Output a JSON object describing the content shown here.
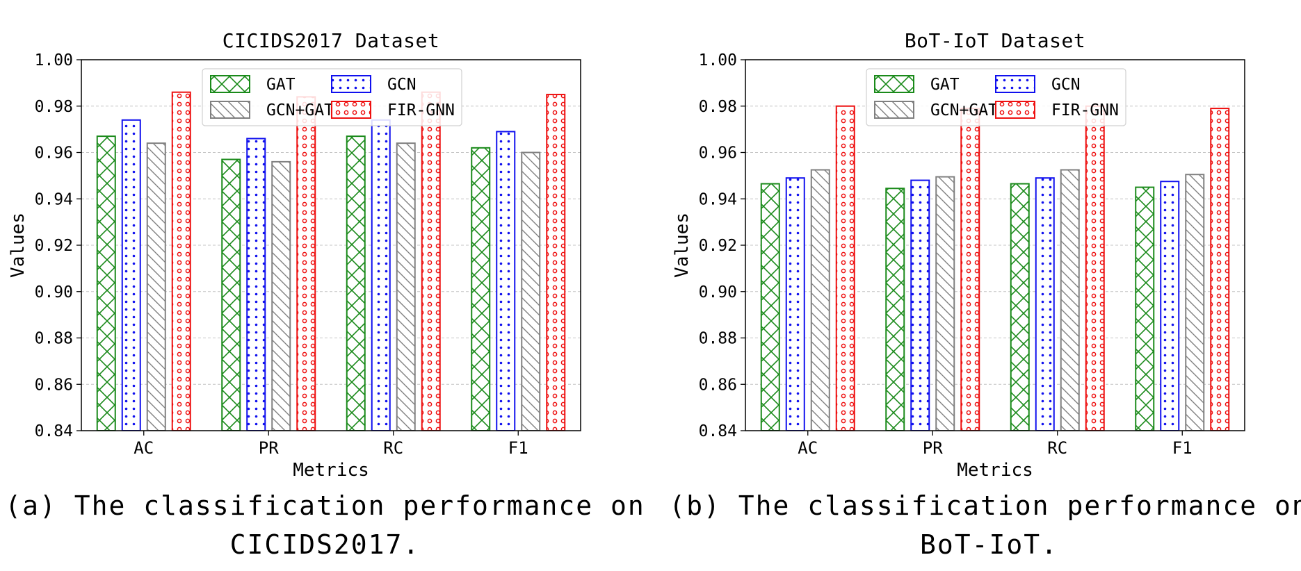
{
  "chart_data": [
    {
      "type": "bar",
      "title": "CICIDS2017 Dataset",
      "xlabel": "Metrics",
      "ylabel": "Values",
      "ylim": [
        0.84,
        1.0
      ],
      "yticks": [
        "0.84",
        "0.86",
        "0.88",
        "0.90",
        "0.92",
        "0.94",
        "0.96",
        "0.98",
        "1.00"
      ],
      "grid": "horizontal dashed",
      "legend_position": "top-center",
      "categories": [
        "AC",
        "PR",
        "RC",
        "F1"
      ],
      "series": [
        {
          "name": "GAT",
          "values": [
            0.967,
            0.957,
            0.967,
            0.962
          ],
          "color": "#1a8a1a",
          "hatch": "crosshatch"
        },
        {
          "name": "GCN",
          "values": [
            0.974,
            0.966,
            0.974,
            0.969
          ],
          "color": "#1010ee",
          "hatch": "dots"
        },
        {
          "name": "GCN+GAT",
          "values": [
            0.964,
            0.956,
            0.964,
            0.96
          ],
          "color": "#808080",
          "hatch": "diagonal"
        },
        {
          "name": "FIR-GNN",
          "values": [
            0.986,
            0.984,
            0.986,
            0.985
          ],
          "color": "#ee1010",
          "hatch": "circles"
        }
      ],
      "caption_lines": [
        "(a) The classification performance on",
        "CICIDS2017."
      ]
    },
    {
      "type": "bar",
      "title": "BoT-IoT Dataset",
      "xlabel": "Metrics",
      "ylabel": "Values",
      "ylim": [
        0.84,
        1.0
      ],
      "yticks": [
        "0.84",
        "0.86",
        "0.88",
        "0.90",
        "0.92",
        "0.94",
        "0.96",
        "0.98",
        "1.00"
      ],
      "grid": "horizontal dashed",
      "legend_position": "top-center",
      "categories": [
        "AC",
        "PR",
        "RC",
        "F1"
      ],
      "series": [
        {
          "name": "GAT",
          "values": [
            0.9465,
            0.9445,
            0.9465,
            0.945
          ],
          "color": "#1a8a1a",
          "hatch": "crosshatch"
        },
        {
          "name": "GCN",
          "values": [
            0.949,
            0.948,
            0.949,
            0.9475
          ],
          "color": "#1010ee",
          "hatch": "dots"
        },
        {
          "name": "GCN+GAT",
          "values": [
            0.9525,
            0.9495,
            0.9525,
            0.9505
          ],
          "color": "#808080",
          "hatch": "diagonal"
        },
        {
          "name": "FIR-GNN",
          "values": [
            0.98,
            0.979,
            0.98,
            0.979
          ],
          "color": "#ee1010",
          "hatch": "circles"
        }
      ],
      "caption_lines": [
        "(b) The classification performance on",
        "BoT-IoT."
      ]
    }
  ]
}
